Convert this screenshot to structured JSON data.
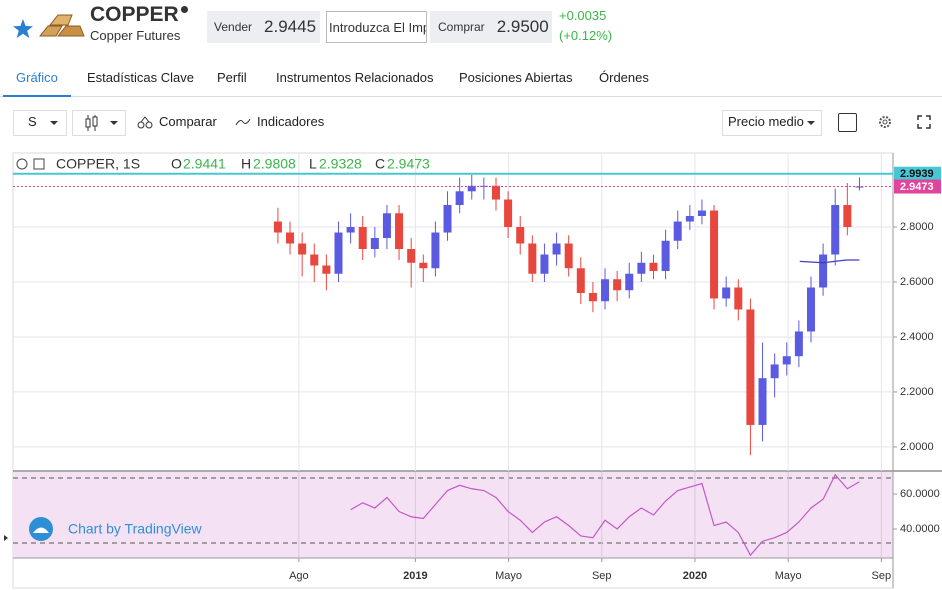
{
  "header": {
    "symbol": "COPPER",
    "name": "Copper Futures",
    "sell_label": "Vender",
    "sell_price": "2.9445",
    "amount_placeholder": "Introduzca El Imp",
    "buy_label": "Comprar",
    "buy_price": "2.9500",
    "change": "+0.0035",
    "change_pct": "(+0.12%)"
  },
  "tabs": [
    "Gráfico",
    "Estadísticas Clave",
    "Perfil",
    "Instrumentos Relacionados",
    "Posiciones Abiertas",
    "Órdenes"
  ],
  "toolbar": {
    "interval": "S",
    "compare": "Comparar",
    "indicators": "Indicadores",
    "price_type": "Precio medio"
  },
  "watermark": "Chart by TradingView",
  "chart_data": {
    "type": "candlestick",
    "title": "COPPER, 1S",
    "ohlc_labels": [
      "O",
      "H",
      "L",
      "C"
    ],
    "x": [
      -0.9,
      -0.38,
      0.14,
      0.66,
      1.18,
      1.7,
      2.22,
      2.74,
      3.26,
      3.78,
      4.3,
      4.82,
      5.34,
      5.86,
      6.38,
      6.9,
      7.42,
      7.94,
      8.46,
      8.98,
      9.5,
      10.02,
      10.54,
      11.06,
      11.58,
      12.1,
      12.62,
      13.14,
      13.66,
      14.18,
      14.7,
      15.22,
      15.74,
      16.26,
      16.78,
      17.3,
      17.82,
      18.34,
      18.86,
      19.38,
      19.9,
      20.42,
      20.94,
      21.46,
      21.98,
      22.5,
      23.02,
      23.54,
      24.06
    ],
    "open": [
      2.82,
      2.78,
      2.74,
      2.7,
      2.66,
      2.63,
      2.78,
      2.8,
      2.72,
      2.76,
      2.85,
      2.72,
      2.67,
      2.65,
      2.78,
      2.88,
      2.93,
      2.95,
      2.95,
      2.9,
      2.8,
      2.74,
      2.63,
      2.7,
      2.74,
      2.65,
      2.56,
      2.53,
      2.61,
      2.57,
      2.63,
      2.67,
      2.64,
      2.75,
      2.82,
      2.84,
      2.86,
      2.54,
      2.58,
      2.5,
      2.08,
      2.25,
      2.3,
      2.33,
      2.42,
      2.58,
      2.7,
      2.88,
      2.9441
    ],
    "high": [
      2.87,
      2.82,
      2.78,
      2.74,
      2.7,
      2.82,
      2.85,
      2.84,
      2.8,
      2.88,
      2.88,
      2.76,
      2.7,
      2.82,
      2.93,
      2.98,
      2.99,
      2.98,
      2.98,
      2.93,
      2.84,
      2.77,
      2.74,
      2.78,
      2.77,
      2.69,
      2.6,
      2.65,
      2.64,
      2.67,
      2.71,
      2.7,
      2.79,
      2.86,
      2.88,
      2.9,
      2.88,
      2.62,
      2.61,
      2.54,
      2.38,
      2.34,
      2.38,
      2.46,
      2.62,
      2.74,
      2.94,
      2.96,
      2.9808
    ],
    "low": [
      2.74,
      2.7,
      2.62,
      2.6,
      2.57,
      2.6,
      2.74,
      2.68,
      2.69,
      2.72,
      2.68,
      2.58,
      2.6,
      2.62,
      2.75,
      2.85,
      2.9,
      2.9,
      2.86,
      2.76,
      2.7,
      2.6,
      2.6,
      2.66,
      2.62,
      2.52,
      2.49,
      2.5,
      2.53,
      2.54,
      2.6,
      2.61,
      2.61,
      2.72,
      2.79,
      2.81,
      2.5,
      2.51,
      2.46,
      1.97,
      2.02,
      2.18,
      2.26,
      2.29,
      2.38,
      2.55,
      2.66,
      2.77,
      2.9328
    ],
    "close": [
      2.78,
      2.74,
      2.7,
      2.66,
      2.63,
      2.78,
      2.8,
      2.72,
      2.76,
      2.85,
      2.72,
      2.67,
      2.65,
      2.78,
      2.88,
      2.93,
      2.95,
      2.95,
      2.9,
      2.8,
      2.74,
      2.63,
      2.7,
      2.74,
      2.65,
      2.56,
      2.53,
      2.61,
      2.57,
      2.63,
      2.67,
      2.64,
      2.75,
      2.82,
      2.84,
      2.86,
      2.54,
      2.58,
      2.5,
      2.08,
      2.25,
      2.3,
      2.33,
      2.42,
      2.58,
      2.7,
      2.88,
      2.8,
      2.9473
    ],
    "up_color": "#5a5be0",
    "down_color": "#e8473d",
    "xlim": [
      -12.27,
      25.5
    ],
    "xticks": [
      {
        "value": 0,
        "label": "Ago"
      },
      {
        "value": 5,
        "label": "2019"
      },
      {
        "value": 9,
        "label": "Mayo"
      },
      {
        "value": 13,
        "label": "Sep"
      },
      {
        "value": 17,
        "label": "2020"
      },
      {
        "value": 21,
        "label": "Mayo"
      },
      {
        "value": 25,
        "label": "Sep"
      }
    ],
    "ylim": [
      1.916,
      3.062
    ],
    "yticks": [
      {
        "value": 2.0,
        "label": "2.0000"
      },
      {
        "value": 2.2,
        "label": "2.2000"
      },
      {
        "value": 2.4,
        "label": "2.4000"
      },
      {
        "value": 2.6,
        "label": "2.6000"
      },
      {
        "value": 2.8,
        "label": "2.8000"
      }
    ],
    "grid": true,
    "price_lines": [
      {
        "value": 2.9939,
        "color": "#47c7d4"
      },
      {
        "value": 2.9473,
        "color": "#e0449b"
      }
    ],
    "ma": {
      "color": "#3d3dc0",
      "x": [
        21.5,
        22.5,
        23.5,
        24.06
      ],
      "values": [
        2.675,
        2.67,
        2.68,
        2.68
      ]
    },
    "rsi": {
      "color": "#c359c9",
      "ylim": [
        23.4,
        72.6
      ],
      "yticks": [
        {
          "value": 40,
          "label": "40.0000"
        },
        {
          "value": 60,
          "label": "60.0000"
        }
      ],
      "values": [
        null,
        null,
        null,
        null,
        null,
        null,
        51,
        55,
        52,
        58,
        50,
        47,
        46,
        54,
        62,
        65,
        63,
        62,
        58,
        50,
        45,
        38,
        44,
        47,
        42,
        36,
        35,
        45,
        40,
        47,
        52,
        48,
        56,
        62,
        64,
        66,
        42,
        44,
        38,
        25,
        33,
        35,
        38,
        44,
        52,
        57,
        71,
        63,
        67
      ]
    }
  }
}
